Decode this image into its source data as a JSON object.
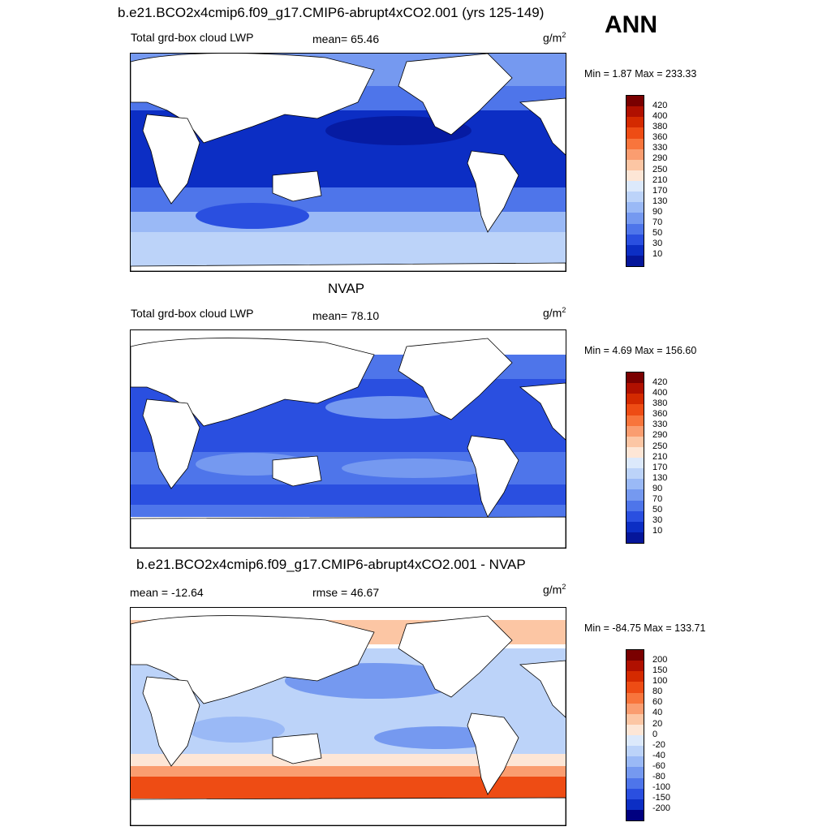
{
  "title": "b.e21.BCO2x4cmip6.f09_g17.CMIP6-abrupt4xCO2.001 (yrs 125-149)",
  "season": "ANN",
  "panels": [
    {
      "header": "",
      "left_label": "Total grd-box cloud LWP",
      "center_label": "mean=  65.46",
      "units": "g/m",
      "units_exp": "2",
      "minmax": "Min =   1.87 Max = 233.33",
      "colorbar_labels": [
        "420",
        "400",
        "380",
        "360",
        "330",
        "290",
        "250",
        "210",
        "170",
        "130",
        "90",
        "70",
        "50",
        "30",
        "10"
      ]
    },
    {
      "header": "NVAP",
      "left_label": "Total grd-box cloud LWP",
      "center_label": "mean=  78.10",
      "units": "g/m",
      "units_exp": "2",
      "minmax": "Min =   4.69 Max = 156.60",
      "colorbar_labels": [
        "420",
        "400",
        "380",
        "360",
        "330",
        "290",
        "250",
        "210",
        "170",
        "130",
        "90",
        "70",
        "50",
        "30",
        "10"
      ]
    },
    {
      "header": "b.e21.BCO2x4cmip6.f09_g17.CMIP6-abrupt4xCO2.001 - NVAP",
      "left_label": "mean = -12.64",
      "center_label": "rmse =  46.67",
      "units": "g/m",
      "units_exp": "2",
      "minmax": "Min = -84.75 Max = 133.71",
      "colorbar_labels": [
        "200",
        "150",
        "100",
        "80",
        "60",
        "40",
        "20",
        "0",
        "-20",
        "-40",
        "-60",
        "-80",
        "-100",
        "-150",
        "-200"
      ]
    }
  ],
  "colors": {
    "abs_scale": [
      "#7a0000",
      "#b01000",
      "#d42a00",
      "#ee4c14",
      "#f8753c",
      "#fa9d70",
      "#fcc6a4",
      "#fde6d6",
      "#dce9fb",
      "#bcd3f9",
      "#9ab9f6",
      "#7599f0",
      "#4e75ea",
      "#2a4fe0",
      "#0c2ec4",
      "#05169a",
      "#000080"
    ],
    "diff_scale": [
      "#7a0000",
      "#b01000",
      "#d42a00",
      "#ee4c14",
      "#f8753c",
      "#fa9d70",
      "#fcc6a4",
      "#fde6d6",
      "#ffffff",
      "#dce9fb",
      "#bcd3f9",
      "#9ab9f6",
      "#7599f0",
      "#4e75ea",
      "#2a4fe0",
      "#0c2ec4",
      "#000080"
    ]
  }
}
